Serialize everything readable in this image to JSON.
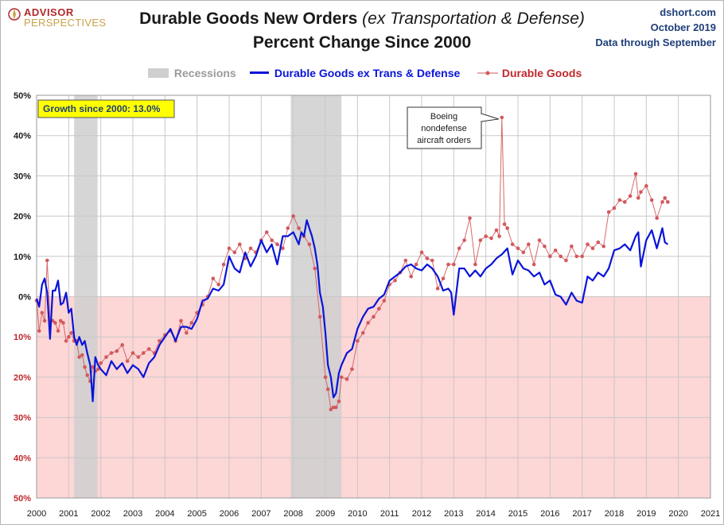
{
  "header": {
    "logo_main": "ADVISOR",
    "logo_sub": "PERSPECTIVES",
    "title_main": "Durable Goods New Orders",
    "title_italic": "(ex Transportation & Defense)",
    "subtitle": "Percent Change Since 2000",
    "source_lines": [
      "dshort.com",
      "October 2019",
      "Data through September"
    ]
  },
  "colors": {
    "ex_trans_line": "#0a14d8",
    "durable_goods": "#d2595c",
    "recession": "#cfcfcf",
    "negative_zone": "#fdd6d6",
    "grid": "#c8c8c8",
    "callout_bg": "#ffff00"
  },
  "chart_data": {
    "type": "line",
    "title": "Durable Goods New Orders (ex Transportation & Defense) Percent Change Since 2000",
    "xlim": [
      2000,
      2021
    ],
    "ylim": [
      -50,
      50
    ],
    "x_ticks": [
      "2000",
      "2001",
      "2002",
      "2003",
      "2004",
      "2005",
      "2006",
      "2007",
      "2008",
      "2009",
      "2010",
      "2011",
      "2012",
      "2013",
      "2014",
      "2015",
      "2016",
      "2017",
      "2018",
      "2019",
      "2020",
      "2021"
    ],
    "y_ticks": [
      {
        "value": 50,
        "label": "50%"
      },
      {
        "value": 40,
        "label": "40%"
      },
      {
        "value": 30,
        "label": "30%"
      },
      {
        "value": 20,
        "label": "20%"
      },
      {
        "value": 10,
        "label": "10%"
      },
      {
        "value": 0,
        "label": "0%"
      },
      {
        "value": -10,
        "label": "10%"
      },
      {
        "value": -20,
        "label": "20%"
      },
      {
        "value": -30,
        "label": "30%"
      },
      {
        "value": -40,
        "label": "40%"
      },
      {
        "value": -50,
        "label": "50%"
      }
    ],
    "grid": true,
    "legend_position": "top",
    "legend": {
      "recessions": "Recessions",
      "series1": "Durable Goods ex Trans & Defense",
      "series2": "Durable Goods"
    },
    "recessions": [
      [
        2001.17,
        2001.9
      ],
      [
        2007.92,
        2009.5
      ]
    ],
    "annotations": {
      "growth_box": "Growth since 2000:  13.0%",
      "callout_lines": [
        "Boeing",
        "nondefense",
        "aircraft orders"
      ],
      "callout_point": [
        2014.5,
        44.5
      ]
    },
    "series": [
      {
        "name": "Durable Goods ex Trans & Defense",
        "x": [
          2000.0,
          2000.08,
          2000.17,
          2000.25,
          2000.33,
          2000.42,
          2000.5,
          2000.58,
          2000.67,
          2000.75,
          2000.83,
          2000.92,
          2001.0,
          2001.08,
          2001.17,
          2001.25,
          2001.33,
          2001.42,
          2001.5,
          2001.58,
          2001.67,
          2001.75,
          2001.83,
          2001.92,
          2002.0,
          2002.17,
          2002.33,
          2002.5,
          2002.67,
          2002.83,
          2003.0,
          2003.17,
          2003.33,
          2003.5,
          2003.67,
          2003.83,
          2004.0,
          2004.17,
          2004.33,
          2004.5,
          2004.67,
          2004.83,
          2005.0,
          2005.17,
          2005.33,
          2005.5,
          2005.67,
          2005.83,
          2006.0,
          2006.17,
          2006.33,
          2006.5,
          2006.67,
          2006.83,
          2007.0,
          2007.17,
          2007.33,
          2007.5,
          2007.67,
          2007.83,
          2008.0,
          2008.17,
          2008.25,
          2008.33,
          2008.42,
          2008.5,
          2008.58,
          2008.67,
          2008.75,
          2008.83,
          2008.92,
          2009.0,
          2009.08,
          2009.17,
          2009.25,
          2009.33,
          2009.42,
          2009.5,
          2009.67,
          2009.83,
          2010.0,
          2010.17,
          2010.33,
          2010.5,
          2010.67,
          2010.83,
          2011.0,
          2011.17,
          2011.33,
          2011.5,
          2011.67,
          2011.83,
          2012.0,
          2012.17,
          2012.33,
          2012.5,
          2012.67,
          2012.83,
          2012.92,
          2013.0,
          2013.17,
          2013.33,
          2013.5,
          2013.67,
          2013.83,
          2014.0,
          2014.17,
          2014.33,
          2014.5,
          2014.67,
          2014.83,
          2015.0,
          2015.17,
          2015.33,
          2015.5,
          2015.67,
          2015.83,
          2016.0,
          2016.17,
          2016.33,
          2016.5,
          2016.67,
          2016.83,
          2017.0,
          2017.17,
          2017.33,
          2017.5,
          2017.67,
          2017.83,
          2018.0,
          2018.17,
          2018.33,
          2018.5,
          2018.67,
          2018.75,
          2018.83,
          2019.0,
          2019.17,
          2019.33,
          2019.5,
          2019.58,
          2019.67
        ],
        "values": [
          -0.5,
          -2.5,
          3.0,
          4.5,
          1.0,
          -10.5,
          1.5,
          1.5,
          4.0,
          -2.0,
          -1.5,
          1.0,
          -4.0,
          -3.0,
          -10.0,
          -12.0,
          -10.0,
          -12.0,
          -11.0,
          -14.0,
          -17.0,
          -26.0,
          -15.0,
          -17.0,
          -18.0,
          -19.5,
          -16.0,
          -18.0,
          -16.5,
          -19.0,
          -17.0,
          -18.0,
          -20.0,
          -16.5,
          -15.0,
          -12.0,
          -10.0,
          -8.0,
          -11.0,
          -7.5,
          -7.5,
          -8.0,
          -5.5,
          -1.0,
          -0.5,
          2.0,
          1.5,
          3.0,
          10.0,
          7.0,
          6.0,
          11.0,
          7.5,
          10.0,
          14.0,
          11.0,
          13.0,
          8.0,
          15.0,
          15.0,
          16.0,
          13.0,
          16.0,
          15.0,
          19.0,
          17.0,
          15.0,
          12.0,
          8.0,
          1.0,
          -2.5,
          -9.0,
          -17.0,
          -20.0,
          -25.0,
          -24.0,
          -19.0,
          -17.0,
          -14.0,
          -13.0,
          -8.0,
          -5.0,
          -3.0,
          -2.5,
          -0.5,
          0.5,
          4.0,
          5.0,
          6.0,
          7.5,
          8.0,
          7.0,
          6.5,
          8.0,
          7.0,
          5.0,
          1.5,
          2.0,
          1.0,
          -4.5,
          7.0,
          7.0,
          5.0,
          6.5,
          5.0,
          7.0,
          8.0,
          9.5,
          10.5,
          12.0,
          5.5,
          9.0,
          7.0,
          6.5,
          5.0,
          6.0,
          3.0,
          4.0,
          0.5,
          0.0,
          -2.0,
          1.0,
          -1.0,
          -1.5,
          5.0,
          4.0,
          6.0,
          5.0,
          7.0,
          11.5,
          12.0,
          13.0,
          11.5,
          15.0,
          16.0,
          7.5,
          14.0,
          16.5,
          12.0,
          17.0,
          13.5,
          13.0
        ]
      },
      {
        "name": "Durable Goods",
        "x": [
          2000.0,
          2000.08,
          2000.17,
          2000.25,
          2000.33,
          2000.42,
          2000.5,
          2000.58,
          2000.67,
          2000.75,
          2000.83,
          2000.92,
          2001.0,
          2001.08,
          2001.17,
          2001.25,
          2001.33,
          2001.42,
          2001.5,
          2001.58,
          2001.67,
          2001.75,
          2001.83,
          2001.92,
          2002.0,
          2002.17,
          2002.33,
          2002.5,
          2002.67,
          2002.83,
          2003.0,
          2003.17,
          2003.33,
          2003.5,
          2003.67,
          2003.83,
          2004.0,
          2004.17,
          2004.33,
          2004.5,
          2004.67,
          2004.83,
          2005.0,
          2005.17,
          2005.33,
          2005.5,
          2005.67,
          2005.83,
          2006.0,
          2006.17,
          2006.33,
          2006.5,
          2006.67,
          2006.83,
          2007.0,
          2007.17,
          2007.33,
          2007.5,
          2007.67,
          2007.83,
          2008.0,
          2008.17,
          2008.33,
          2008.5,
          2008.67,
          2008.83,
          2009.0,
          2009.08,
          2009.17,
          2009.25,
          2009.33,
          2009.42,
          2009.5,
          2009.67,
          2009.83,
          2010.0,
          2010.17,
          2010.33,
          2010.5,
          2010.67,
          2010.83,
          2011.0,
          2011.17,
          2011.33,
          2011.5,
          2011.67,
          2011.83,
          2012.0,
          2012.17,
          2012.33,
          2012.5,
          2012.67,
          2012.83,
          2013.0,
          2013.17,
          2013.33,
          2013.5,
          2013.67,
          2013.83,
          2014.0,
          2014.17,
          2014.33,
          2014.42,
          2014.5,
          2014.58,
          2014.67,
          2014.83,
          2015.0,
          2015.17,
          2015.33,
          2015.5,
          2015.67,
          2015.83,
          2016.0,
          2016.17,
          2016.33,
          2016.5,
          2016.67,
          2016.83,
          2017.0,
          2017.17,
          2017.33,
          2017.5,
          2017.67,
          2017.83,
          2018.0,
          2018.17,
          2018.33,
          2018.5,
          2018.67,
          2018.75,
          2018.83,
          2019.0,
          2019.17,
          2019.33,
          2019.5,
          2019.58,
          2019.67
        ],
        "values": [
          -1.0,
          -8.5,
          -4.0,
          -6.0,
          9.0,
          -6.0,
          -6.0,
          -6.5,
          -8.5,
          -6.0,
          -6.5,
          -11.0,
          -10.0,
          -9.0,
          -11.0,
          -11.0,
          -15.0,
          -14.5,
          -17.5,
          -19.5,
          -21.0,
          -17.5,
          -18.5,
          -18.0,
          -16.5,
          -15.0,
          -14.0,
          -13.5,
          -12.0,
          -16.0,
          -14.0,
          -15.0,
          -14.0,
          -13.0,
          -14.0,
          -11.0,
          -9.5,
          -8.5,
          -11.0,
          -6.0,
          -9.0,
          -6.5,
          -4.0,
          -2.0,
          0.0,
          4.5,
          3.0,
          8.0,
          12.0,
          11.0,
          13.0,
          9.5,
          12.0,
          11.0,
          14.0,
          16.0,
          14.0,
          13.0,
          12.0,
          17.0,
          20.0,
          17.0,
          15.0,
          13.0,
          7.0,
          -5.0,
          -20.0,
          -23.0,
          -28.0,
          -27.5,
          -27.5,
          -26.0,
          -20.0,
          -20.5,
          -18.0,
          -11.0,
          -9.0,
          -6.5,
          -5.0,
          -3.0,
          -1.0,
          3.0,
          4.0,
          6.0,
          9.0,
          5.0,
          8.0,
          11.0,
          9.5,
          9.0,
          2.0,
          4.5,
          8.0,
          8.0,
          12.0,
          14.0,
          19.5,
          8.0,
          14.0,
          15.0,
          14.5,
          16.5,
          15.0,
          44.5,
          18.0,
          17.0,
          13.0,
          12.0,
          11.0,
          13.0,
          8.0,
          14.0,
          12.5,
          10.0,
          11.5,
          10.0,
          9.0,
          12.5,
          10.0,
          10.0,
          13.0,
          12.0,
          13.5,
          12.5,
          21.0,
          22.0,
          24.0,
          23.5,
          25.0,
          30.5,
          24.5,
          26.0,
          27.5,
          24.0,
          19.5,
          23.5,
          24.5,
          23.5
        ]
      }
    ]
  }
}
